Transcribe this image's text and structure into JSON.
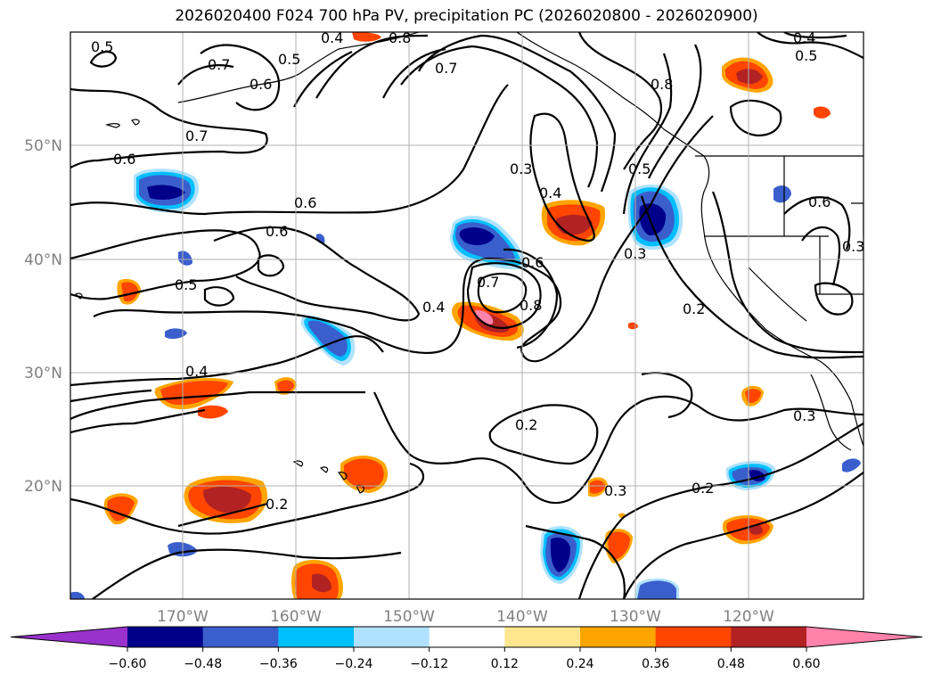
{
  "title": "2026020400 F024 700 hPa PV, precipitation PC (2026020800 - 2026020900)",
  "lat_labels": [
    "50°N",
    "40°N",
    "30°N",
    "20°N"
  ],
  "lon_labels": [
    "170°W",
    "160°W",
    "150°W",
    "140°W",
    "130°W",
    "120°W"
  ],
  "colorbar": {
    "ticks": [
      "−0.60",
      "−0.48",
      "−0.36",
      "−0.24",
      "−0.12",
      "0.12",
      "0.24",
      "0.36",
      "0.48",
      "0.60"
    ],
    "colors": [
      "#9932cc",
      "#00008b",
      "#3a5fcd",
      "#00bfff",
      "#b0e2ff",
      "#ffffff",
      "#ffe68f",
      "#ffa500",
      "#ff4500",
      "#b22222",
      "#ff82ab"
    ]
  },
  "contour_labels": [
    "0.5",
    "0.4",
    "0.8",
    "0.7",
    "0.5",
    "0.6",
    "0.7",
    "0.6",
    "0.6",
    "0.6",
    "0.5",
    "0.4",
    "0.3",
    "0.4",
    "0.7",
    "0.6",
    "0.8",
    "0.7",
    "0.8",
    "0.5",
    "0.4",
    "0.5",
    "0.3",
    "0.2",
    "0.6",
    "0.3",
    "0.2",
    "0.2",
    "0.3",
    "0.2",
    "0.3",
    "0.4"
  ]
}
